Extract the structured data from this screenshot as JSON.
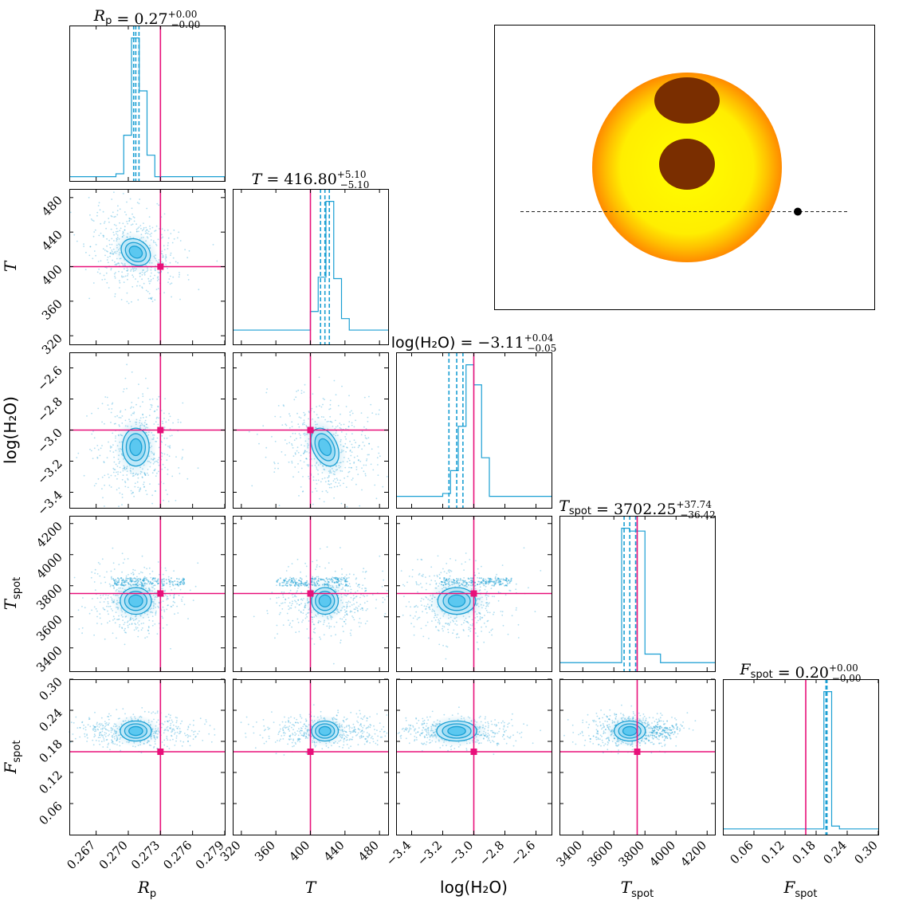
{
  "colors": {
    "accent": "#1a9fd3",
    "accent_fill": "#5bc8f0",
    "accent_light": "#bfe8f8",
    "truth": "#e8107a",
    "star_core": "#ffff00",
    "star_mid": "#ffc400",
    "star_edge": "#ff8c00",
    "spot": "#7a2e00"
  },
  "chart_data": {
    "type": "corner",
    "parameters": [
      {
        "key": "Rp",
        "label_main": "R",
        "label_sub": "p",
        "title_main": "R",
        "title_sub": "p",
        "title_value": " = 0.27",
        "title_plus": "+0.00",
        "title_minus": "−0.00",
        "range": [
          0.2645,
          0.279
        ],
        "ticks": [
          0.267,
          0.27,
          0.273,
          0.276,
          0.279
        ],
        "tick_labels": [
          "0.267",
          "0.270",
          "0.273",
          "0.276",
          "0.279"
        ],
        "median": 0.2707,
        "q16": 0.2705,
        "q84": 0.271,
        "truth": 0.273,
        "sigma": 0.0006
      },
      {
        "key": "T",
        "label_main": "T",
        "label_sub": "",
        "title_main": "T",
        "title_sub": "",
        "title_value": " = 416.80",
        "title_plus": "+5.10",
        "title_minus": "−5.10",
        "range": [
          310,
          490
        ],
        "ticks": [
          320,
          360,
          400,
          440,
          480
        ],
        "tick_labels": [
          "320",
          "360",
          "400",
          "440",
          "480"
        ],
        "median": 416.8,
        "q16": 411.7,
        "q84": 421.9,
        "truth": 400,
        "sigma": 5.1
      },
      {
        "key": "logH2O",
        "label_main": "log(H₂O)",
        "label_sub": "",
        "title_main": "log(H₂O)",
        "title_sub": "",
        "title_value": " = −3.11",
        "title_plus": "+0.04",
        "title_minus": "−0.05",
        "range": [
          -3.5,
          -2.5
        ],
        "ticks": [
          -3.4,
          -3.2,
          -3.0,
          -2.8,
          -2.6
        ],
        "tick_labels": [
          "−3.4",
          "−3.2",
          "−3.0",
          "−2.8",
          "−2.6"
        ],
        "median": -3.11,
        "q16": -3.16,
        "q84": -3.07,
        "truth": -3.0,
        "sigma": 0.045
      },
      {
        "key": "Tspot",
        "label_main": "T",
        "label_sub": "spot",
        "title_main": "T",
        "title_sub": "spot",
        "title_value": " = 3702.25",
        "title_plus": "+37.74",
        "title_minus": "−36.42",
        "range": [
          3250,
          4250
        ],
        "ticks": [
          3400,
          3600,
          3800,
          4000,
          4200
        ],
        "tick_labels": [
          "3400",
          "3600",
          "3800",
          "4000",
          "4200"
        ],
        "median": 3702.25,
        "q16": 3665.8,
        "q84": 3740.0,
        "truth": 3750,
        "sigma": 37
      },
      {
        "key": "Fspot",
        "label_main": "F",
        "label_sub": "spot",
        "title_main": "F",
        "title_sub": "spot",
        "title_value": " = 0.20",
        "title_plus": "+0.00",
        "title_minus": "−0.00",
        "range": [
          0.0,
          0.3
        ],
        "ticks": [
          0.06,
          0.12,
          0.18,
          0.24,
          0.3
        ],
        "tick_labels": [
          "0.06",
          "0.12",
          "0.18",
          "0.24",
          "0.30"
        ],
        "median": 0.2,
        "q16": 0.199,
        "q84": 0.201,
        "truth": 0.16,
        "sigma": 0.005
      }
    ],
    "y_tick_overrides": {
      "Fspot": {
        "ticks": [
          0.06,
          0.12,
          0.18,
          0.24,
          0.3
        ],
        "tick_labels": [
          "0.06",
          "0.12",
          "0.18",
          "0.24",
          "0.30"
        ]
      }
    },
    "histograms": {
      "Rp": [
        0.03,
        0.03,
        0.03,
        0.03,
        0.03,
        0.03,
        0.05,
        0.32,
        1.0,
        0.63,
        0.18,
        0.03,
        0.03,
        0.03,
        0.03,
        0.03,
        0.03,
        0.03,
        0.03,
        0.03
      ],
      "T": [
        0.1,
        0.1,
        0.1,
        0.1,
        0.1,
        0.1,
        0.1,
        0.1,
        0.1,
        0.1,
        0.23,
        0.47,
        1.0,
        0.46,
        0.18,
        0.1,
        0.1,
        0.1,
        0.1,
        0.1
      ],
      "logH2O": [
        0.08,
        0.08,
        0.08,
        0.08,
        0.08,
        0.08,
        0.1,
        0.26,
        0.57,
        1.0,
        0.86,
        0.35,
        0.08,
        0.08,
        0.08,
        0.08,
        0.08,
        0.08,
        0.08,
        0.08
      ],
      "Tspot": [
        0.06,
        0.06,
        0.06,
        0.06,
        0.06,
        0.06,
        0.06,
        0.06,
        1.0,
        0.98,
        0.98,
        0.12,
        0.12,
        0.06,
        0.06,
        0.06,
        0.06,
        0.06,
        0.06,
        0.06
      ],
      "Fspot": [
        0.04,
        0.04,
        0.04,
        0.04,
        0.04,
        0.04,
        0.04,
        0.04,
        0.04,
        0.04,
        0.04,
        0.04,
        0.04,
        1.0,
        0.06,
        0.04,
        0.04,
        0.04,
        0.04,
        0.04
      ]
    },
    "inset": {
      "type": "diagram",
      "star": "limb-darkened stellar disk",
      "spots": 2,
      "transit_chord": true,
      "planet_marker": true
    }
  }
}
